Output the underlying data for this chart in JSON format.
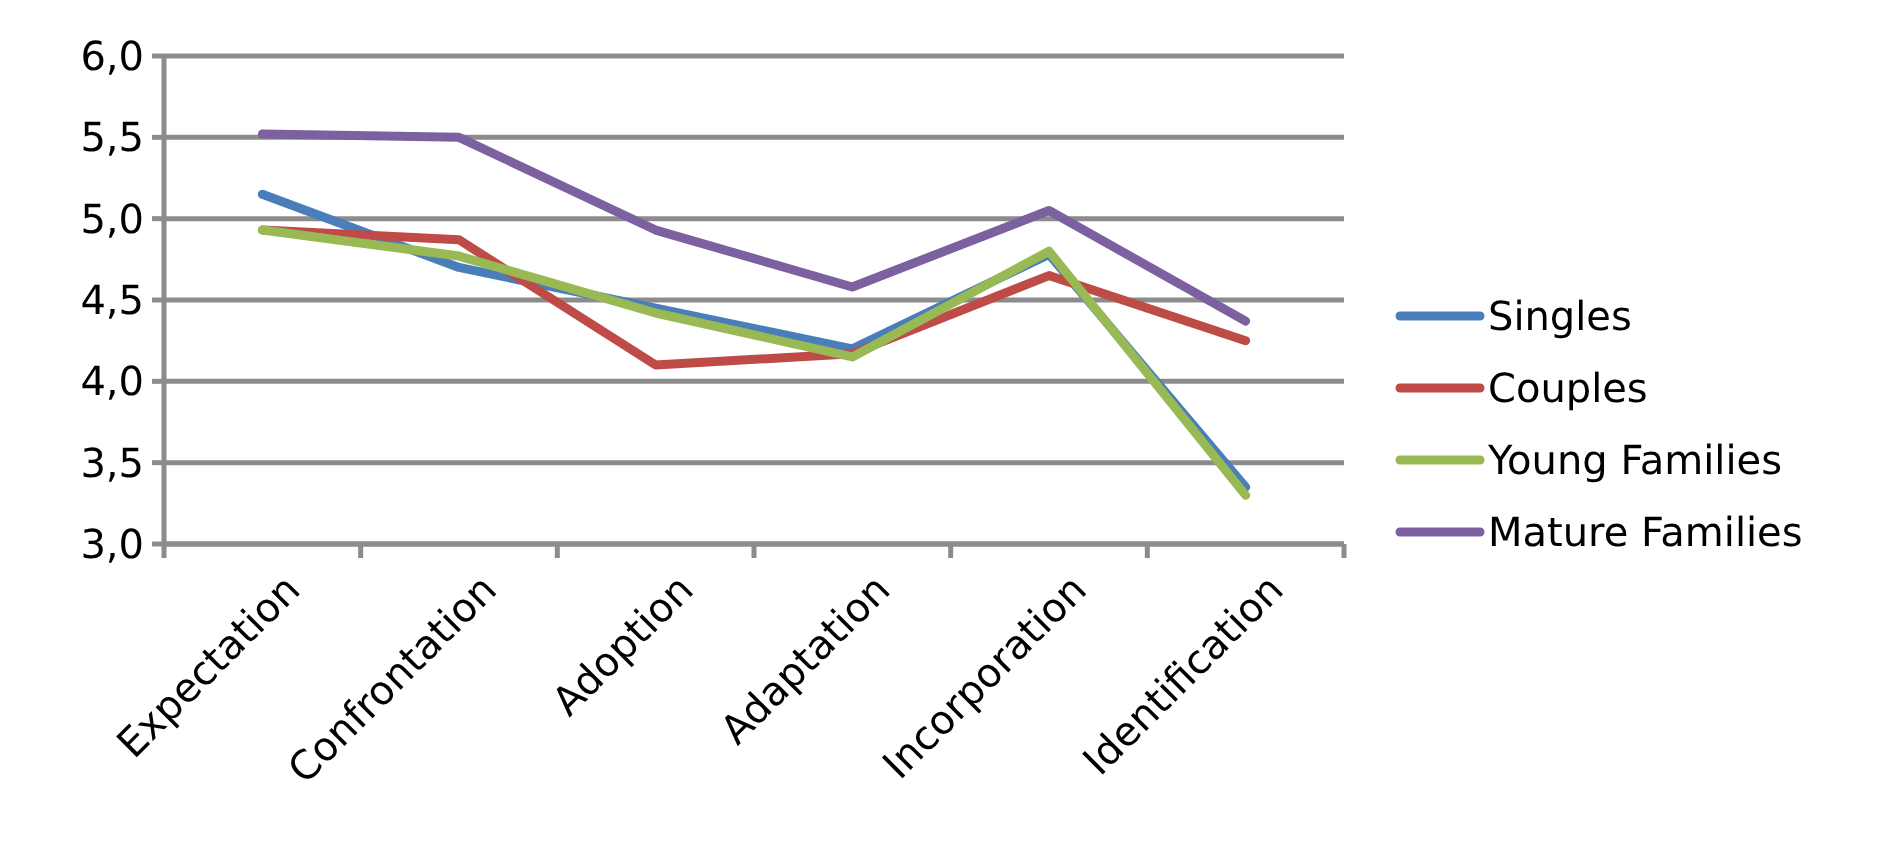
{
  "chart_data": {
    "type": "line",
    "categories": [
      "Expectation",
      "Confrontation",
      "Adoption",
      "Adaptation",
      "Incorporation",
      "Identification"
    ],
    "series": [
      {
        "name": "Singles",
        "color": "#4a7ebb",
        "values": [
          5.15,
          4.7,
          4.45,
          4.2,
          4.78,
          3.35
        ]
      },
      {
        "name": "Couples",
        "color": "#be4b48",
        "values": [
          4.93,
          4.87,
          4.1,
          4.17,
          4.65,
          4.25
        ]
      },
      {
        "name": "Young Families",
        "color": "#98b954",
        "values": [
          4.93,
          4.77,
          4.42,
          4.15,
          4.8,
          3.3
        ]
      },
      {
        "name": "Mature Families",
        "color": "#7d60a0",
        "values": [
          5.52,
          5.5,
          4.93,
          4.58,
          5.05,
          4.37
        ]
      }
    ],
    "ylim": [
      3,
      6
    ],
    "yticks": [
      {
        "value": 3,
        "label": "3,0"
      },
      {
        "value": 3.5,
        "label": "3,5"
      },
      {
        "value": 4,
        "label": "4,0"
      },
      {
        "value": 4.5,
        "label": "4,5"
      },
      {
        "value": 5,
        "label": "5,0"
      },
      {
        "value": 5.5,
        "label": "5,5"
      },
      {
        "value": 6,
        "label": "6,0"
      }
    ],
    "grid": "y",
    "legend": "right",
    "marker": "none",
    "line_style": "solid"
  }
}
